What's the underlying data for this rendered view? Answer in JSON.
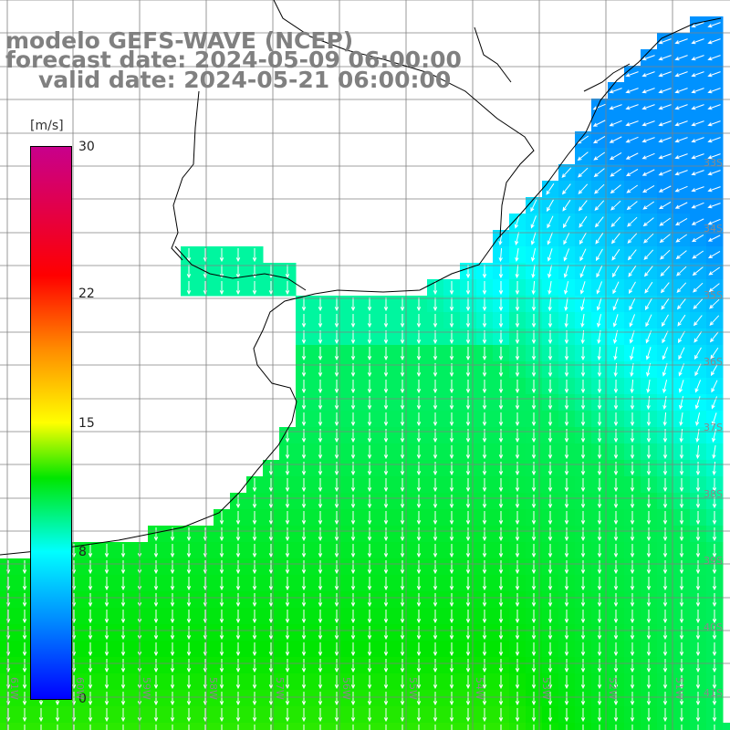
{
  "title": {
    "model": "modelo GEFS-WAVE (NCEP)",
    "forecast": "forecast date: 2024-05-09 06:00:00",
    "valid": "valid date: 2024-05-21 06:00:00"
  },
  "colorbar": {
    "unit": "[m/s]",
    "min": 0,
    "max": 30,
    "ticks": [
      "30",
      "22",
      "15",
      "8",
      "0"
    ],
    "tick_values": [
      30,
      22,
      15,
      8,
      0
    ]
  },
  "grid": {
    "lat_labels": [
      "33S",
      "34S",
      "35S",
      "36S",
      "37S",
      "38S",
      "39S",
      "40S",
      "41S"
    ],
    "lon_labels": [
      "61W",
      "60W",
      "59W",
      "58W",
      "57W",
      "56W",
      "55W",
      "54W",
      "53W",
      "52W",
      "51W"
    ]
  },
  "colors": {
    "land": "#ffffff",
    "gridline": "#808080",
    "coast": "#000000",
    "arrows": "#ffffff",
    "title": "#808080"
  }
}
